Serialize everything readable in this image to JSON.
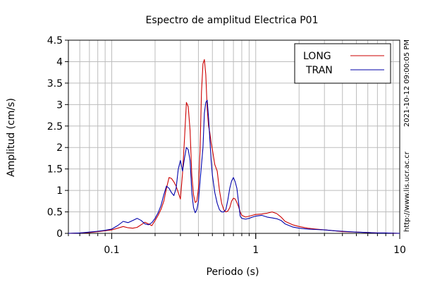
{
  "chart_data": {
    "type": "line",
    "title": "Espectro de amplitud Electrica P01",
    "xlabel": "Periodo (s)",
    "ylabel": "Amplitud (cm/s)",
    "x_scale": "log",
    "xlim": [
      0.05,
      10
    ],
    "ylim": [
      0,
      4.5
    ],
    "x_tick_labels": [
      "0.1",
      "1",
      "10"
    ],
    "x_tick_values": [
      0.1,
      1,
      10
    ],
    "y_tick_labels": [
      "0",
      "0.5",
      "1",
      "1.5",
      "2",
      "2.5",
      "3",
      "3.5",
      "4",
      "4.5"
    ],
    "y_tick_values": [
      0,
      0.5,
      1,
      1.5,
      2,
      2.5,
      3,
      3.5,
      4,
      4.5
    ],
    "grid": true,
    "legend_position": "top-right",
    "side_annotations": [
      "2021-10-12 09:00:05 PM",
      "http://www.lis.ucr.ac.cr"
    ],
    "series": [
      {
        "name": "LONG",
        "color": "#cc0000",
        "x": [
          0.05,
          0.06,
          0.07,
          0.08,
          0.09,
          0.1,
          0.11,
          0.12,
          0.13,
          0.14,
          0.15,
          0.16,
          0.17,
          0.18,
          0.19,
          0.2,
          0.21,
          0.22,
          0.23,
          0.24,
          0.25,
          0.26,
          0.27,
          0.28,
          0.29,
          0.3,
          0.31,
          0.32,
          0.33,
          0.34,
          0.35,
          0.36,
          0.37,
          0.38,
          0.39,
          0.4,
          0.41,
          0.42,
          0.43,
          0.44,
          0.45,
          0.46,
          0.47,
          0.48,
          0.49,
          0.5,
          0.52,
          0.54,
          0.56,
          0.58,
          0.6,
          0.62,
          0.64,
          0.66,
          0.68,
          0.7,
          0.72,
          0.74,
          0.76,
          0.78,
          0.8,
          0.85,
          0.9,
          0.95,
          1.0,
          1.1,
          1.2,
          1.3,
          1.4,
          1.5,
          1.6,
          1.8,
          2.0,
          2.3,
          2.6,
          3.0,
          3.5,
          4.0,
          5.0,
          6.0,
          7.0,
          8.0,
          10.0
        ],
        "y": [
          0.0,
          0.01,
          0.02,
          0.04,
          0.06,
          0.08,
          0.12,
          0.16,
          0.13,
          0.12,
          0.14,
          0.2,
          0.26,
          0.22,
          0.18,
          0.3,
          0.42,
          0.56,
          0.75,
          1.05,
          1.3,
          1.28,
          1.2,
          1.1,
          0.95,
          0.8,
          1.4,
          2.2,
          3.05,
          2.95,
          2.4,
          1.35,
          0.9,
          0.72,
          0.75,
          1.05,
          1.9,
          3.3,
          3.95,
          4.05,
          3.7,
          2.9,
          2.5,
          2.35,
          2.1,
          1.95,
          1.6,
          1.45,
          1.0,
          0.7,
          0.55,
          0.5,
          0.52,
          0.6,
          0.75,
          0.82,
          0.8,
          0.72,
          0.62,
          0.5,
          0.42,
          0.38,
          0.4,
          0.42,
          0.44,
          0.45,
          0.47,
          0.5,
          0.46,
          0.38,
          0.28,
          0.2,
          0.16,
          0.12,
          0.1,
          0.08,
          0.06,
          0.04,
          0.03,
          0.02,
          0.01,
          0.01,
          0.0
        ]
      },
      {
        "name": "TRAN",
        "color": "#0000aa",
        "x": [
          0.05,
          0.06,
          0.07,
          0.08,
          0.09,
          0.1,
          0.11,
          0.12,
          0.13,
          0.14,
          0.15,
          0.16,
          0.17,
          0.18,
          0.19,
          0.2,
          0.21,
          0.22,
          0.23,
          0.24,
          0.25,
          0.26,
          0.27,
          0.28,
          0.29,
          0.3,
          0.31,
          0.32,
          0.33,
          0.34,
          0.35,
          0.36,
          0.37,
          0.38,
          0.39,
          0.4,
          0.41,
          0.42,
          0.43,
          0.44,
          0.45,
          0.46,
          0.47,
          0.48,
          0.49,
          0.5,
          0.52,
          0.54,
          0.56,
          0.58,
          0.6,
          0.62,
          0.64,
          0.66,
          0.68,
          0.7,
          0.72,
          0.74,
          0.76,
          0.78,
          0.8,
          0.85,
          0.9,
          0.95,
          1.0,
          1.1,
          1.2,
          1.3,
          1.4,
          1.5,
          1.6,
          1.8,
          2.0,
          2.3,
          2.6,
          3.0,
          3.5,
          4.0,
          5.0,
          6.0,
          7.0,
          8.0,
          10.0
        ],
        "y": [
          0.0,
          0.01,
          0.03,
          0.05,
          0.07,
          0.1,
          0.18,
          0.28,
          0.25,
          0.3,
          0.35,
          0.3,
          0.22,
          0.2,
          0.25,
          0.35,
          0.48,
          0.65,
          0.9,
          1.1,
          1.05,
          0.95,
          0.88,
          1.05,
          1.5,
          1.7,
          1.45,
          1.75,
          2.0,
          1.95,
          1.7,
          0.95,
          0.6,
          0.48,
          0.55,
          0.75,
          1.2,
          1.6,
          2.0,
          2.8,
          3.05,
          3.1,
          2.7,
          2.2,
          1.7,
          1.35,
          0.95,
          0.7,
          0.55,
          0.5,
          0.5,
          0.55,
          0.78,
          1.05,
          1.22,
          1.3,
          1.2,
          1.05,
          0.72,
          0.4,
          0.35,
          0.33,
          0.35,
          0.38,
          0.4,
          0.42,
          0.38,
          0.36,
          0.34,
          0.3,
          0.22,
          0.15,
          0.12,
          0.1,
          0.09,
          0.08,
          0.06,
          0.05,
          0.03,
          0.02,
          0.01,
          0.01,
          0.0
        ]
      }
    ]
  }
}
